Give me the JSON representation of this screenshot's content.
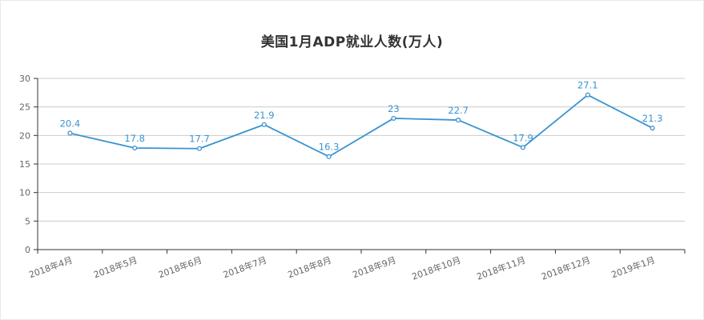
{
  "chart_data": {
    "type": "line",
    "title": "美国1月ADP就业人数(万人)",
    "xlabel": "",
    "ylabel": "",
    "categories": [
      "2018年4月",
      "2018年5月",
      "2018年6月",
      "2018年7月",
      "2018年8月",
      "2018年9月",
      "2018年10月",
      "2018年11月",
      "2018年12月",
      "2019年1月"
    ],
    "series": [
      {
        "values": [
          20.4,
          17.8,
          17.7,
          21.9,
          16.3,
          23,
          22.7,
          17.9,
          27.1,
          21.3
        ]
      }
    ],
    "data_labels": [
      "20.4",
      "17.8",
      "17.7",
      "21.9",
      "16.3",
      "23",
      "22.7",
      "17.9",
      "27.1",
      "21.3"
    ],
    "y_ticks": [
      "0",
      "5",
      "10",
      "15",
      "20",
      "25",
      "30"
    ],
    "ylim": [
      0,
      30
    ],
    "grid": true,
    "legend": "none",
    "colors": {
      "line": "#3a93d1",
      "grid": "#cccccc",
      "axis": "#333333"
    }
  }
}
